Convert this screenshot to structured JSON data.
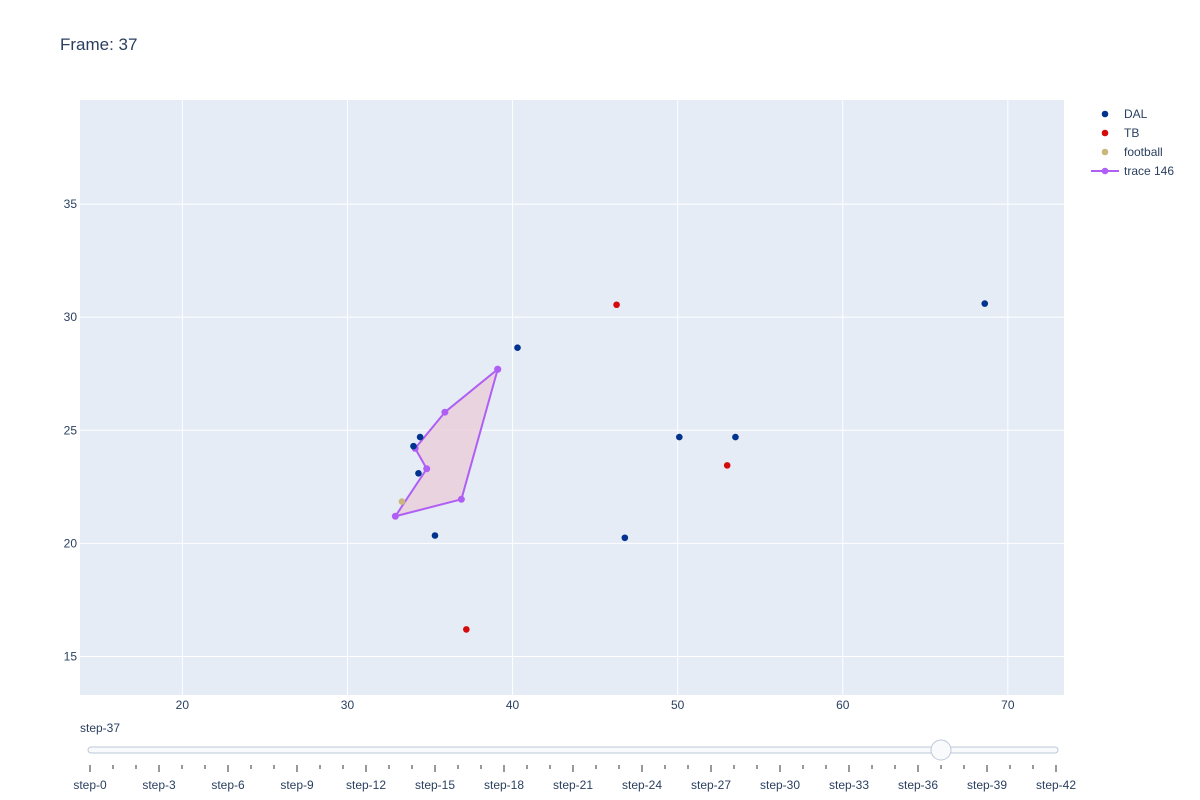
{
  "title": "Frame: 37",
  "chart_data": {
    "type": "scatter",
    "title": "Frame: 37",
    "xlabel": "",
    "ylabel": "",
    "xlim": [
      13.8,
      73.4
    ],
    "ylim": [
      13.3,
      39.6
    ],
    "x_ticks": [
      20,
      30,
      40,
      50,
      60,
      70
    ],
    "y_ticks": [
      15,
      20,
      25,
      30,
      35
    ],
    "grid": true,
    "legend_position": "top-right",
    "background_color": "#e5ecf6",
    "series": [
      {
        "name": "DAL",
        "color": "#00338d",
        "mode": "markers",
        "x": [
          34.4,
          34.0,
          34.3,
          35.3,
          40.3,
          46.8,
          50.1,
          53.5,
          68.6
        ],
        "y": [
          24.7,
          24.3,
          23.1,
          20.35,
          28.65,
          20.25,
          24.7,
          24.7,
          30.6
        ]
      },
      {
        "name": "TB",
        "color": "#d50a0a",
        "mode": "markers",
        "x": [
          46.3,
          53.0,
          37.2
        ],
        "y": [
          30.55,
          23.45,
          16.2
        ]
      },
      {
        "name": "football",
        "color": "#cbb67c",
        "mode": "markers",
        "x": [
          33.3
        ],
        "y": [
          21.85
        ]
      },
      {
        "name": "trace 146",
        "color": "#b05ff5",
        "fill_color": "rgba(234, 205, 216, 0.8)",
        "mode": "lines+markers",
        "fill": "toself",
        "x": [
          39.1,
          35.9,
          34.1,
          34.8,
          32.9,
          36.9,
          39.1
        ],
        "y": [
          27.7,
          25.8,
          24.2,
          23.3,
          21.2,
          21.95,
          27.7
        ]
      }
    ]
  },
  "slider": {
    "current_label": "step-37",
    "current_index": 37,
    "max_index": 42,
    "tick_labels": [
      "step-0",
      "step-3",
      "step-6",
      "step-9",
      "step-12",
      "step-15",
      "step-18",
      "step-21",
      "step-24",
      "step-27",
      "step-30",
      "step-33",
      "step-36",
      "step-39",
      "step-42"
    ]
  }
}
